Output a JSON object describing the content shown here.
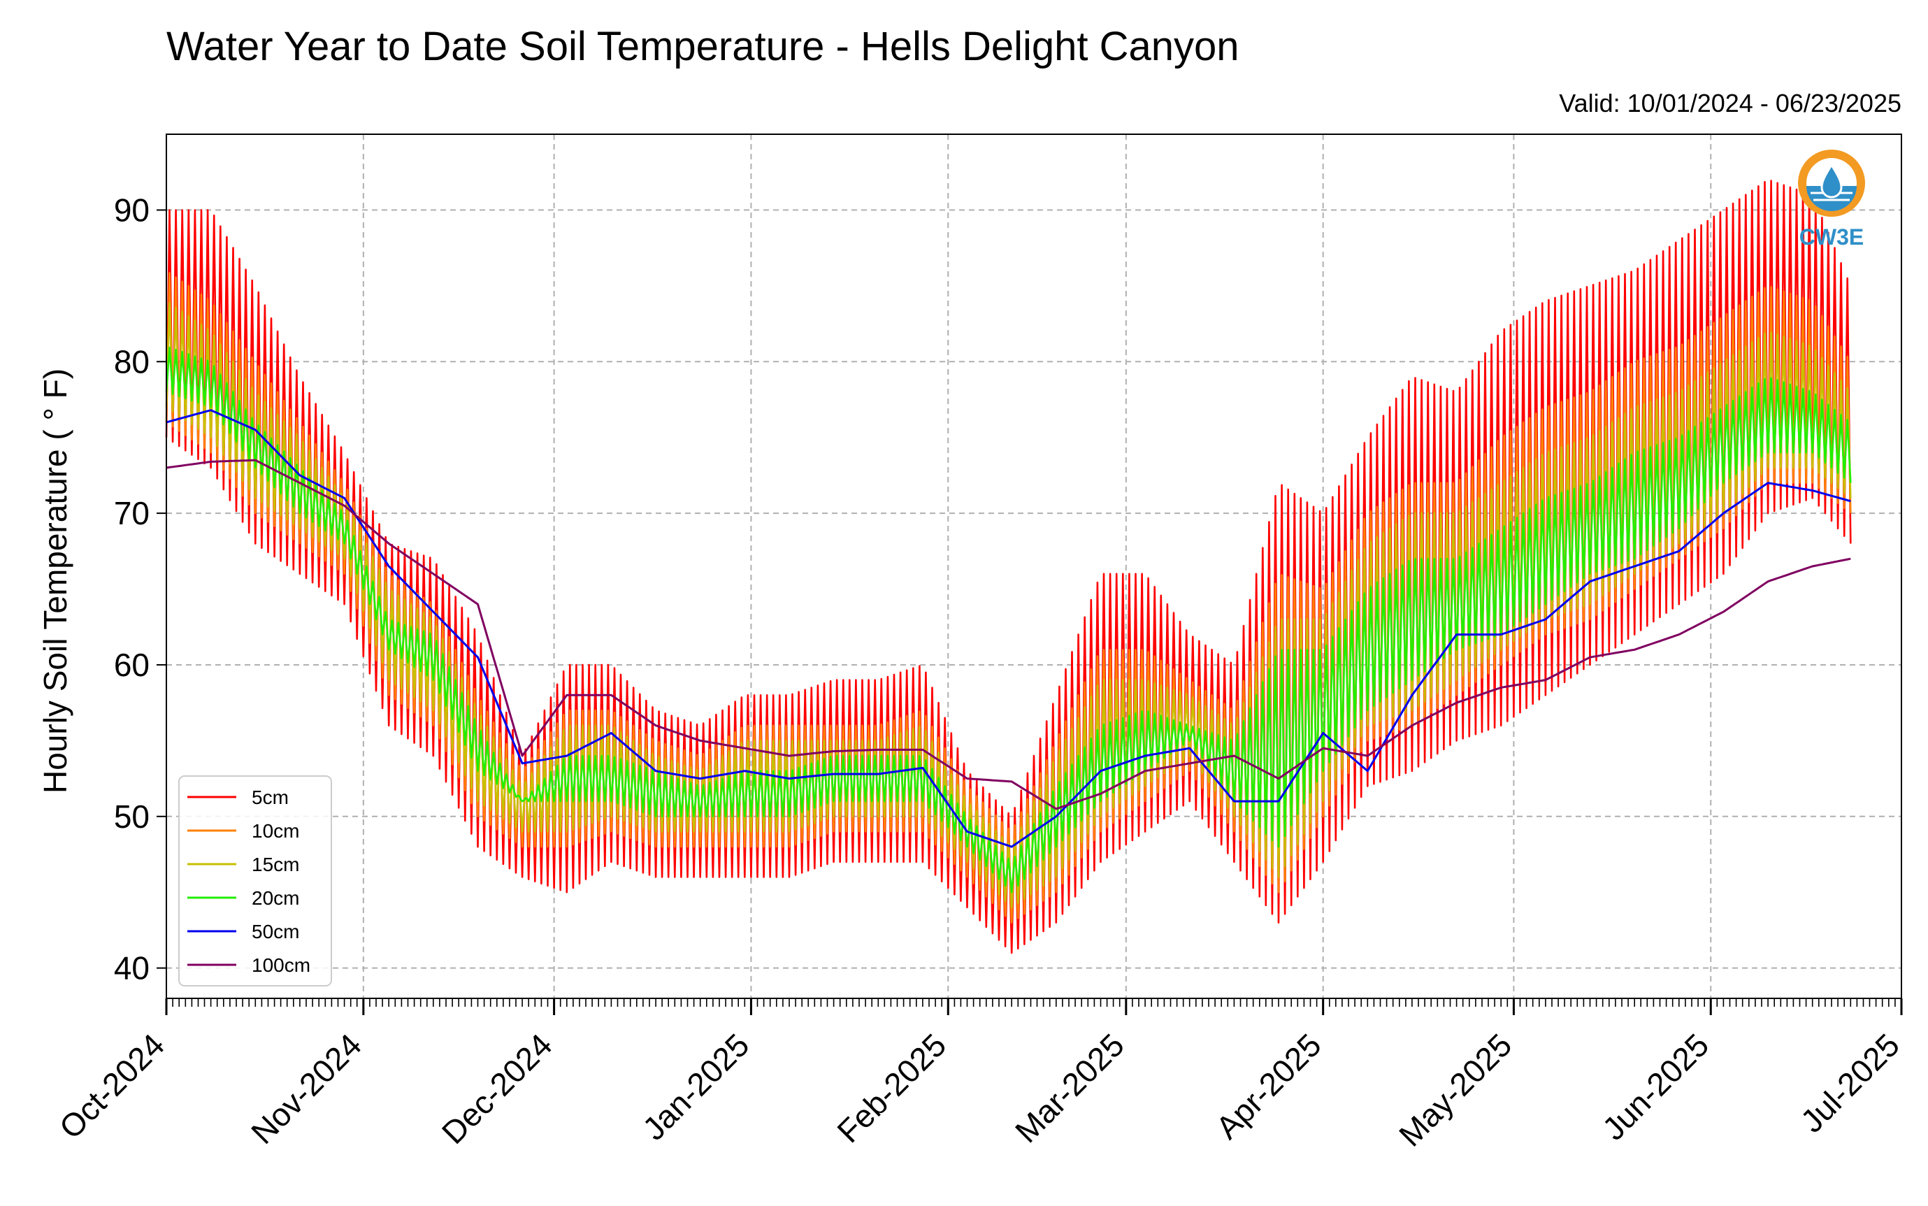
{
  "chart_data": {
    "type": "line",
    "title": "Water Year to Date Soil Temperature - Hells Delight Canyon",
    "subtitle": "Valid: 10/01/2024 - 06/23/2025",
    "xlabel": "",
    "ylabel": "Hourly Soil Temperature ( ° F)",
    "xlim": [
      "2024-10-01",
      "2025-07-01"
    ],
    "ylim": [
      38,
      95
    ],
    "yticks": [
      40,
      50,
      60,
      70,
      80,
      90
    ],
    "xticks": [
      "2024-10-01",
      "2024-11-01",
      "2024-12-01",
      "2025-01-01",
      "2025-02-01",
      "2025-03-01",
      "2025-04-01",
      "2025-05-01",
      "2025-06-01",
      "2025-07-01"
    ],
    "xtick_labels": [
      "Oct-2024",
      "Nov-2024",
      "Dec-2024",
      "Jan-2025",
      "Feb-2025",
      "Mar-2025",
      "Apr-2025",
      "May-2025",
      "Jun-2025",
      "Jul-2025"
    ],
    "grid": true,
    "legend_position": "lower-left",
    "logo_text": "CW3E",
    "colors": {
      "5cm": "#ff0000",
      "10cm": "#ff8000",
      "15cm": "#c8c000",
      "20cm": "#22ee00",
      "50cm": "#0000ee",
      "100cm": "#800060"
    },
    "series": [
      {
        "name": "5cm",
        "color": "#ff0000",
        "x": [
          "2024-10-01",
          "2024-10-08",
          "2024-10-15",
          "2024-10-22",
          "2024-10-29",
          "2024-11-05",
          "2024-11-12",
          "2024-11-19",
          "2024-11-26",
          "2024-12-03",
          "2024-12-10",
          "2024-12-17",
          "2024-12-24",
          "2024-12-31",
          "2025-01-07",
          "2025-01-14",
          "2025-01-21",
          "2025-01-28",
          "2025-02-04",
          "2025-02-11",
          "2025-02-18",
          "2025-02-25",
          "2025-03-04",
          "2025-03-11",
          "2025-03-18",
          "2025-03-25",
          "2025-04-01",
          "2025-04-08",
          "2025-04-15",
          "2025-04-22",
          "2025-04-29",
          "2025-05-06",
          "2025-05-13",
          "2025-05-20",
          "2025-05-27",
          "2025-06-03",
          "2025-06-10",
          "2025-06-17",
          "2025-06-23"
        ],
        "min": [
          75,
          73,
          68,
          66,
          64,
          56,
          54,
          48,
          46,
          45,
          47,
          46,
          46,
          46,
          46,
          47,
          47,
          47,
          44,
          41,
          43,
          47,
          49,
          51,
          47,
          43,
          47,
          52,
          53,
          55,
          56,
          58,
          60,
          62,
          64,
          66,
          70,
          71,
          68
        ],
        "max": [
          90,
          90,
          85,
          79,
          74,
          68,
          67,
          62,
          54,
          60,
          60,
          57,
          56,
          58,
          58,
          59,
          59,
          60,
          53,
          50,
          58,
          66,
          66,
          62,
          60,
          72,
          70,
          75,
          79,
          78,
          82,
          84,
          85,
          86,
          88,
          90,
          92,
          91,
          85
        ]
      },
      {
        "name": "10cm",
        "color": "#ff8000",
        "x": [
          "2024-10-01",
          "2024-10-08",
          "2024-10-15",
          "2024-10-22",
          "2024-10-29",
          "2024-11-05",
          "2024-11-12",
          "2024-11-19",
          "2024-11-26",
          "2024-12-03",
          "2024-12-10",
          "2024-12-17",
          "2024-12-24",
          "2024-12-31",
          "2025-01-07",
          "2025-01-14",
          "2025-01-21",
          "2025-01-28",
          "2025-02-04",
          "2025-02-11",
          "2025-02-18",
          "2025-02-25",
          "2025-03-04",
          "2025-03-11",
          "2025-03-18",
          "2025-03-25",
          "2025-04-01",
          "2025-04-08",
          "2025-04-15",
          "2025-04-22",
          "2025-04-29",
          "2025-05-06",
          "2025-05-13",
          "2025-05-20",
          "2025-05-27",
          "2025-06-03",
          "2025-06-10",
          "2025-06-17",
          "2025-06-23"
        ],
        "min": [
          76,
          74,
          70,
          68,
          66,
          58,
          56,
          50,
          48,
          48,
          49,
          48,
          48,
          48,
          48,
          49,
          49,
          49,
          46,
          43,
          45,
          49,
          51,
          53,
          49,
          45,
          50,
          55,
          56,
          58,
          60,
          62,
          63,
          65,
          67,
          69,
          72,
          72,
          70
        ],
        "max": [
          86,
          84,
          80,
          76,
          72,
          66,
          64,
          58,
          53,
          57,
          57,
          55,
          54,
          56,
          56,
          56,
          56,
          57,
          52,
          49,
          55,
          61,
          61,
          59,
          57,
          66,
          65,
          70,
          72,
          72,
          75,
          77,
          78,
          80,
          81,
          83,
          85,
          84,
          80
        ]
      },
      {
        "name": "15cm",
        "color": "#c8c000",
        "x": [
          "2024-10-01",
          "2024-10-08",
          "2024-10-15",
          "2024-10-22",
          "2024-10-29",
          "2024-11-05",
          "2024-11-12",
          "2024-11-19",
          "2024-11-26",
          "2024-12-03",
          "2024-12-10",
          "2024-12-17",
          "2024-12-24",
          "2024-12-31",
          "2025-01-07",
          "2025-01-14",
          "2025-01-21",
          "2025-01-28",
          "2025-02-04",
          "2025-02-11",
          "2025-02-18",
          "2025-02-25",
          "2025-03-04",
          "2025-03-11",
          "2025-03-18",
          "2025-03-25",
          "2025-04-01",
          "2025-04-08",
          "2025-04-15",
          "2025-04-22",
          "2025-04-29",
          "2025-05-06",
          "2025-05-13",
          "2025-05-20",
          "2025-05-27",
          "2025-06-03",
          "2025-06-10",
          "2025-06-17",
          "2025-06-23"
        ],
        "min": [
          77,
          75,
          71,
          69,
          67,
          59,
          57,
          51,
          49,
          49,
          50,
          49,
          49,
          49,
          49,
          50,
          50,
          50,
          47,
          44,
          46,
          50,
          52,
          54,
          50,
          46,
          51,
          56,
          57,
          59,
          61,
          63,
          64,
          66,
          68,
          70,
          73,
          73,
          71
        ],
        "max": [
          84,
          82,
          78,
          75,
          71,
          65,
          63,
          57,
          52,
          56,
          56,
          54,
          53,
          55,
          55,
          55,
          55,
          56,
          51,
          48,
          54,
          59,
          59,
          58,
          56,
          63,
          63,
          68,
          70,
          70,
          72,
          74,
          75,
          77,
          78,
          80,
          82,
          81,
          78
        ]
      },
      {
        "name": "20cm",
        "color": "#22ee00",
        "x": [
          "2024-10-01",
          "2024-10-08",
          "2024-10-15",
          "2024-10-22",
          "2024-10-29",
          "2024-11-05",
          "2024-11-12",
          "2024-11-19",
          "2024-11-26",
          "2024-12-03",
          "2024-12-10",
          "2024-12-17",
          "2024-12-24",
          "2024-12-31",
          "2025-01-07",
          "2025-01-14",
          "2025-01-21",
          "2025-01-28",
          "2025-02-04",
          "2025-02-11",
          "2025-02-18",
          "2025-02-25",
          "2025-03-04",
          "2025-03-11",
          "2025-03-18",
          "2025-03-25",
          "2025-04-01",
          "2025-04-08",
          "2025-04-15",
          "2025-04-22",
          "2025-04-29",
          "2025-05-06",
          "2025-05-13",
          "2025-05-20",
          "2025-05-27",
          "2025-06-03",
          "2025-06-10",
          "2025-06-17",
          "2025-06-23"
        ],
        "min": [
          78,
          77,
          73,
          70,
          68,
          61,
          59,
          53,
          51,
          51,
          51,
          50,
          50,
          50,
          50,
          51,
          51,
          51,
          48,
          45,
          48,
          51,
          53,
          55,
          51,
          48,
          53,
          57,
          59,
          61,
          62,
          64,
          66,
          67,
          69,
          72,
          74,
          74,
          72
        ],
        "max": [
          81,
          80,
          76,
          73,
          70,
          63,
          62,
          56,
          51,
          54,
          54,
          53,
          52,
          53,
          53,
          54,
          54,
          54,
          50,
          47,
          52,
          56,
          57,
          56,
          55,
          61,
          61,
          65,
          67,
          67,
          69,
          71,
          72,
          74,
          75,
          77,
          79,
          78,
          76
        ]
      },
      {
        "name": "50cm",
        "color": "#0000ee",
        "x": [
          "2024-10-01",
          "2024-10-08",
          "2024-10-15",
          "2024-10-22",
          "2024-10-29",
          "2024-11-05",
          "2024-11-12",
          "2024-11-19",
          "2024-11-26",
          "2024-12-03",
          "2024-12-10",
          "2024-12-17",
          "2024-12-24",
          "2024-12-31",
          "2025-01-07",
          "2025-01-14",
          "2025-01-21",
          "2025-01-28",
          "2025-02-04",
          "2025-02-11",
          "2025-02-18",
          "2025-02-25",
          "2025-03-04",
          "2025-03-11",
          "2025-03-18",
          "2025-03-25",
          "2025-04-01",
          "2025-04-08",
          "2025-04-15",
          "2025-04-22",
          "2025-04-29",
          "2025-05-06",
          "2025-05-13",
          "2025-05-20",
          "2025-05-27",
          "2025-06-03",
          "2025-06-10",
          "2025-06-17",
          "2025-06-23"
        ],
        "values": [
          76,
          76.8,
          75.5,
          72.5,
          71,
          66.5,
          63.5,
          60.5,
          53.5,
          54,
          55.5,
          53,
          52.5,
          53,
          52.5,
          52.8,
          52.8,
          53.2,
          49,
          48,
          50,
          53,
          54,
          54.5,
          51,
          51,
          55.5,
          53,
          58,
          62,
          62,
          63,
          65.5,
          66.5,
          67.5,
          70,
          72,
          71.5,
          70.8
        ]
      },
      {
        "name": "100cm",
        "color": "#800060",
        "x": [
          "2024-10-01",
          "2024-10-08",
          "2024-10-15",
          "2024-10-22",
          "2024-10-29",
          "2024-11-05",
          "2024-11-12",
          "2024-11-19",
          "2024-11-26",
          "2024-12-03",
          "2024-12-10",
          "2024-12-17",
          "2024-12-24",
          "2024-12-31",
          "2025-01-07",
          "2025-01-14",
          "2025-01-21",
          "2025-01-28",
          "2025-02-04",
          "2025-02-11",
          "2025-02-18",
          "2025-02-25",
          "2025-03-04",
          "2025-03-11",
          "2025-03-18",
          "2025-03-25",
          "2025-04-01",
          "2025-04-08",
          "2025-04-15",
          "2025-04-22",
          "2025-04-29",
          "2025-05-06",
          "2025-05-13",
          "2025-05-20",
          "2025-05-27",
          "2025-06-03",
          "2025-06-10",
          "2025-06-17",
          "2025-06-23"
        ],
        "values": [
          73,
          73.4,
          73.5,
          72,
          70.5,
          68,
          66,
          64,
          54,
          58,
          58,
          56,
          55,
          54.5,
          54,
          54.3,
          54.4,
          54.4,
          52.5,
          52.3,
          50.5,
          51.5,
          53,
          53.5,
          54,
          52.5,
          54.5,
          54,
          56,
          57.5,
          58.5,
          59,
          60.5,
          61,
          62,
          63.5,
          65.5,
          66.5,
          67
        ]
      }
    ]
  }
}
